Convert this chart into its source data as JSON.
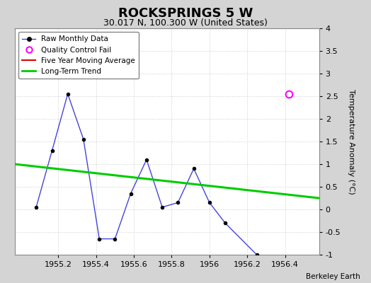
{
  "title": "ROCKSPRINGS 5 W",
  "subtitle": "30.017 N, 100.300 W (United States)",
  "ylabel": "Temperature Anomaly (°C)",
  "credit": "Berkeley Earth",
  "x_data": [
    1955.083,
    1955.167,
    1955.25,
    1955.333,
    1955.417,
    1955.5,
    1955.583,
    1955.667,
    1955.75,
    1955.833,
    1955.917,
    1956.0,
    1956.083,
    1956.25
  ],
  "y_data": [
    0.05,
    1.3,
    2.55,
    1.55,
    -0.65,
    -0.65,
    0.35,
    1.1,
    0.05,
    0.15,
    0.9,
    0.15,
    -0.3,
    -1.0
  ],
  "qc_fail_x": [
    1956.42
  ],
  "qc_fail_y": [
    2.55
  ],
  "trend_x": [
    1954.97,
    1956.58
  ],
  "trend_y": [
    1.0,
    0.25
  ],
  "ylim": [
    -1.0,
    4.0
  ],
  "xlim": [
    1954.97,
    1956.58
  ],
  "yticks": [
    -1.0,
    -0.5,
    0.0,
    0.5,
    1.0,
    1.5,
    2.0,
    2.5,
    3.0,
    3.5,
    4.0
  ],
  "xticks": [
    1955.2,
    1955.4,
    1955.6,
    1955.8,
    1956.0,
    1956.2,
    1956.4
  ],
  "fig_bg_color": "#d4d4d4",
  "plot_bg_color": "#ffffff",
  "line_color": "#4444dd",
  "marker_color": "#000000",
  "trend_color": "#00cc00",
  "ma_color": "#dd0000",
  "qc_color": "#ff00ff",
  "grid_color": "#cccccc",
  "grid_linestyle": "dotted",
  "title_fontsize": 13,
  "subtitle_fontsize": 9,
  "label_fontsize": 8,
  "tick_fontsize": 8
}
